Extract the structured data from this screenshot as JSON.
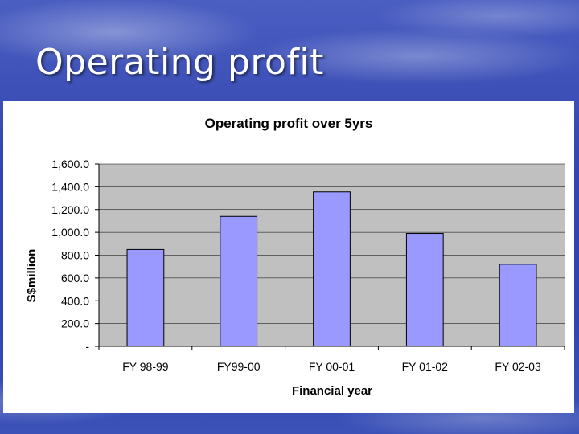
{
  "slide": {
    "title": "Operating profit"
  },
  "colors": {
    "bar_fill": "#9999ff",
    "bar_stroke": "#000000",
    "plot_background": "#c0c0c0",
    "gridline": "#000000"
  },
  "chart_data": {
    "type": "bar",
    "title": "Operating profit over 5yrs",
    "xlabel": "Financial year",
    "ylabel": "S$million",
    "categories": [
      "FY 98-99",
      "FY99-00",
      "FY 00-01",
      "FY 01-02",
      "FY 02-03"
    ],
    "values": [
      850,
      1140,
      1355,
      990,
      720
    ],
    "ylim": [
      0,
      1600
    ],
    "yticks": [
      0,
      200,
      400,
      600,
      800,
      1000,
      1200,
      1400,
      1600
    ],
    "ytick_labels": [
      "-",
      "200.0",
      "400.0",
      "600.0",
      "800.0",
      "1,000.0",
      "1,200.0",
      "1,400.0",
      "1,600.0"
    ],
    "grid": true,
    "legend": "none"
  }
}
